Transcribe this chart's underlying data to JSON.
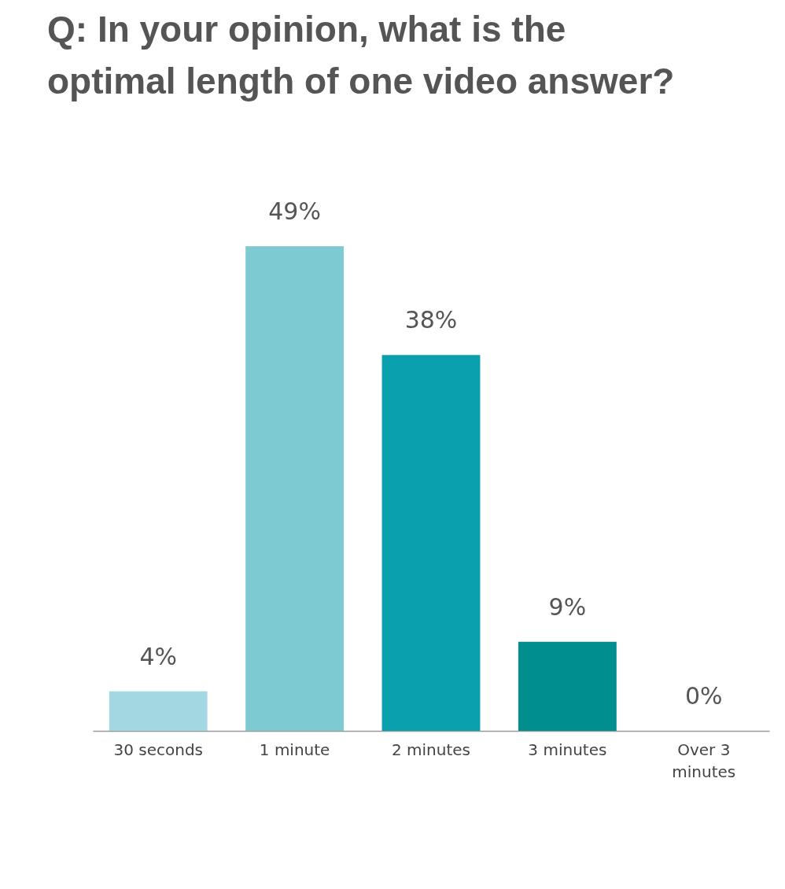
{
  "chart_data": {
    "type": "bar",
    "title": "Q: In your opinion, what is the optimal length of one video answer?",
    "categories": [
      "30 seconds",
      "1 minute",
      "2 minutes",
      "3 minutes",
      "Over 3 minutes"
    ],
    "values": [
      4,
      49,
      38,
      9,
      0
    ],
    "colors": [
      "#a3d8e2",
      "#7ecad2",
      "#0ba0ae",
      "#008f8e",
      "#007a7a"
    ],
    "value_labels": [
      "4%",
      "49%",
      "38%",
      "9%",
      "0%"
    ]
  }
}
